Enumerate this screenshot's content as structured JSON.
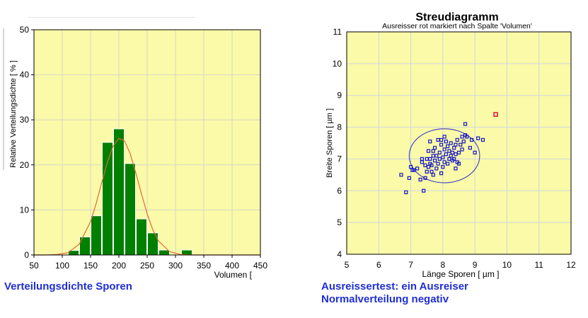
{
  "captions": {
    "left": "Verteilungsdichte Sporen",
    "right_line1": "Ausreissertest: ein Ausreiser",
    "right_line2": "Normalverteilung negativ"
  },
  "colors": {
    "plot_background": "#fafaa8",
    "bar_fill": "#008000",
    "curve": "#e06a3c",
    "point": "#1515c8",
    "outlier": "#e00000",
    "ellipse": "#3a3acc",
    "caption": "#1f2fd1"
  },
  "chart_data": [
    {
      "type": "bar",
      "xlabel": "Volumen [",
      "ylabel": "Relative Verteilungsdichte [ % ]",
      "xlim": [
        50,
        450
      ],
      "ylim": [
        0,
        50
      ],
      "xticks": [
        50,
        100,
        150,
        200,
        250,
        300,
        350,
        400,
        450
      ],
      "yticks": [
        0,
        10,
        20,
        30,
        40,
        50
      ],
      "grid": true,
      "bins": [
        {
          "from": 110,
          "to": 130,
          "value": 1
        },
        {
          "from": 130,
          "to": 150,
          "value": 4
        },
        {
          "from": 150,
          "to": 170,
          "value": 8.7
        },
        {
          "from": 170,
          "to": 190,
          "value": 25
        },
        {
          "from": 190,
          "to": 210,
          "value": 28
        },
        {
          "from": 210,
          "to": 230,
          "value": 20.3
        },
        {
          "from": 230,
          "to": 250,
          "value": 8
        },
        {
          "from": 250,
          "to": 270,
          "value": 4.9
        },
        {
          "from": 270,
          "to": 290,
          "value": 1.1
        },
        {
          "from": 310,
          "to": 330,
          "value": 1.1
        }
      ],
      "curve": {
        "x": [
          50,
          70,
          90,
          110,
          130,
          150,
          160,
          170,
          180,
          190,
          200,
          210,
          220,
          230,
          240,
          250,
          260,
          270,
          290,
          310,
          330,
          360,
          400,
          450
        ],
        "y": [
          0,
          0,
          0.1,
          0.5,
          2.4,
          7.4,
          11.5,
          16.2,
          20.7,
          24.2,
          25.9,
          25.3,
          22.5,
          18.2,
          13.5,
          9.1,
          5.6,
          3.1,
          0.7,
          0.1,
          0,
          0,
          0,
          0
        ]
      }
    },
    {
      "type": "scatter",
      "title": "Streudiagramm",
      "subtitle": "Ausreisser rot markiert nach Spalte 'Volumen'",
      "xlabel": "Länge Sporen [ µm ]",
      "ylabel": "Breite Sporen [ µm ]",
      "xlim": [
        5,
        12
      ],
      "ylim": [
        4,
        11
      ],
      "xticks": [
        5,
        6,
        7,
        8,
        9,
        10,
        11,
        12
      ],
      "yticks": [
        4,
        5,
        6,
        7,
        8,
        9,
        10,
        11
      ],
      "grid": true,
      "ellipse": {
        "cx": 8.05,
        "cy": 7.1,
        "rx": 1.1,
        "ry": 0.85
      },
      "outliers": [
        {
          "x": 9.65,
          "y": 8.4
        }
      ],
      "points": [
        {
          "x": 6.7,
          "y": 6.5
        },
        {
          "x": 6.85,
          "y": 5.95
        },
        {
          "x": 6.95,
          "y": 6.4
        },
        {
          "x": 7.0,
          "y": 6.75
        },
        {
          "x": 7.05,
          "y": 6.65
        },
        {
          "x": 7.1,
          "y": 6.65
        },
        {
          "x": 7.2,
          "y": 6.7
        },
        {
          "x": 7.3,
          "y": 6.35
        },
        {
          "x": 7.35,
          "y": 6.9
        },
        {
          "x": 7.4,
          "y": 6.0
        },
        {
          "x": 7.45,
          "y": 6.4
        },
        {
          "x": 7.45,
          "y": 6.8
        },
        {
          "x": 7.5,
          "y": 7.0
        },
        {
          "x": 7.5,
          "y": 6.6
        },
        {
          "x": 7.55,
          "y": 6.75
        },
        {
          "x": 7.55,
          "y": 7.25
        },
        {
          "x": 7.6,
          "y": 6.85
        },
        {
          "x": 7.6,
          "y": 7.0
        },
        {
          "x": 7.65,
          "y": 6.6
        },
        {
          "x": 7.65,
          "y": 6.8
        },
        {
          "x": 7.7,
          "y": 7.1
        },
        {
          "x": 7.7,
          "y": 6.5
        },
        {
          "x": 7.75,
          "y": 6.95
        },
        {
          "x": 7.75,
          "y": 7.35
        },
        {
          "x": 7.8,
          "y": 6.7
        },
        {
          "x": 7.8,
          "y": 7.1
        },
        {
          "x": 7.85,
          "y": 7.6
        },
        {
          "x": 7.85,
          "y": 6.85
        },
        {
          "x": 7.9,
          "y": 7.0
        },
        {
          "x": 7.9,
          "y": 7.2
        },
        {
          "x": 7.95,
          "y": 6.55
        },
        {
          "x": 7.95,
          "y": 7.45
        },
        {
          "x": 8.0,
          "y": 6.75
        },
        {
          "x": 8.0,
          "y": 7.05
        },
        {
          "x": 8.05,
          "y": 7.3
        },
        {
          "x": 8.05,
          "y": 6.9
        },
        {
          "x": 8.1,
          "y": 7.55
        },
        {
          "x": 8.1,
          "y": 7.15
        },
        {
          "x": 8.15,
          "y": 6.85
        },
        {
          "x": 8.15,
          "y": 7.4
        },
        {
          "x": 8.2,
          "y": 7.0
        },
        {
          "x": 8.2,
          "y": 7.25
        },
        {
          "x": 8.25,
          "y": 7.1
        },
        {
          "x": 8.25,
          "y": 7.5
        },
        {
          "x": 8.3,
          "y": 7.2
        },
        {
          "x": 8.3,
          "y": 6.95
        },
        {
          "x": 8.35,
          "y": 7.35
        },
        {
          "x": 8.35,
          "y": 7.0
        },
        {
          "x": 8.4,
          "y": 7.15
        },
        {
          "x": 8.4,
          "y": 7.45
        },
        {
          "x": 8.45,
          "y": 6.9
        },
        {
          "x": 8.45,
          "y": 7.6
        },
        {
          "x": 8.5,
          "y": 7.2
        },
        {
          "x": 8.55,
          "y": 7.45
        },
        {
          "x": 8.6,
          "y": 7.7
        },
        {
          "x": 8.6,
          "y": 7.3
        },
        {
          "x": 8.65,
          "y": 7.55
        },
        {
          "x": 8.7,
          "y": 7.75
        },
        {
          "x": 8.7,
          "y": 8.1
        },
        {
          "x": 8.75,
          "y": 7.7
        },
        {
          "x": 8.85,
          "y": 7.35
        },
        {
          "x": 8.9,
          "y": 7.6
        },
        {
          "x": 9.0,
          "y": 7.2
        },
        {
          "x": 9.1,
          "y": 7.65
        },
        {
          "x": 9.25,
          "y": 7.6
        },
        {
          "x": 7.6,
          "y": 7.55
        },
        {
          "x": 7.95,
          "y": 7.6
        },
        {
          "x": 8.4,
          "y": 6.7
        },
        {
          "x": 8.5,
          "y": 6.85
        },
        {
          "x": 7.35,
          "y": 7.0
        },
        {
          "x": 8.05,
          "y": 7.7
        },
        {
          "x": 7.7,
          "y": 7.25
        }
      ]
    }
  ]
}
